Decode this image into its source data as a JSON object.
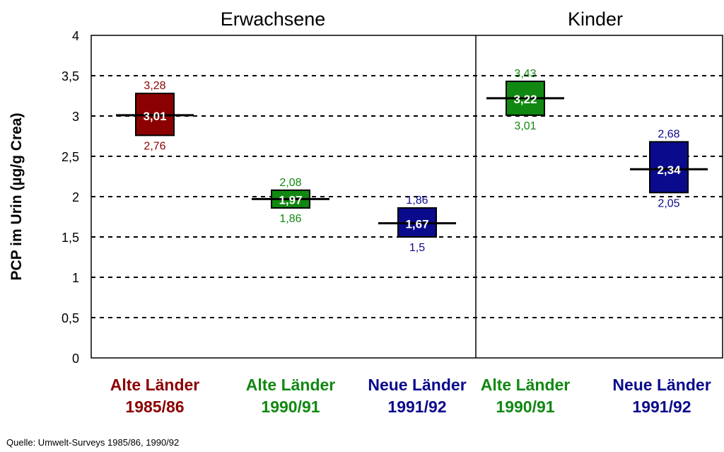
{
  "chart_data": {
    "type": "box",
    "ylabel": "PCP im Urin (µg/g Crea)",
    "ylim": [
      0,
      4
    ],
    "yticks": [
      "0",
      "0,5",
      "1",
      "1,5",
      "2",
      "2,5",
      "3",
      "3,5",
      "4"
    ],
    "grid": "dashed horizontal",
    "panels": [
      {
        "title": "Erwachsene",
        "group_count": 3
      },
      {
        "title": "Kinder",
        "group_count": 2
      }
    ],
    "groups": [
      {
        "line1": "Alte Länder",
        "line2": "1985/86",
        "color": "#8b0000",
        "low": 2.76,
        "median": 3.01,
        "high": 3.28,
        "low_label": "2,76",
        "median_label": "3,01",
        "high_label": "3,28"
      },
      {
        "line1": "Alte Länder",
        "line2": "1990/91",
        "color": "#118811",
        "low": 1.86,
        "median": 1.97,
        "high": 2.08,
        "low_label": "1,86",
        "median_label": "1,97",
        "high_label": "2,08"
      },
      {
        "line1": "Neue Länder",
        "line2": "1991/92",
        "color": "#0a0a8c",
        "low": 1.5,
        "median": 1.67,
        "high": 1.86,
        "low_label": "1,5",
        "median_label": "1,67",
        "high_label": "1,86"
      },
      {
        "line1": "Alte Länder",
        "line2": "1990/91",
        "color": "#118811",
        "low": 3.01,
        "median": 3.22,
        "high": 3.43,
        "low_label": "3,01",
        "median_label": "3,22",
        "high_label": "3,43"
      },
      {
        "line1": "Neue Länder",
        "line2": "1991/92",
        "color": "#0a0a8c",
        "low": 2.05,
        "median": 2.34,
        "high": 2.68,
        "low_label": "2,05",
        "median_label": "2,34",
        "high_label": "2,68"
      }
    ]
  },
  "source": "Quelle: Umwelt-Surveys 1985/86, 1990/92"
}
